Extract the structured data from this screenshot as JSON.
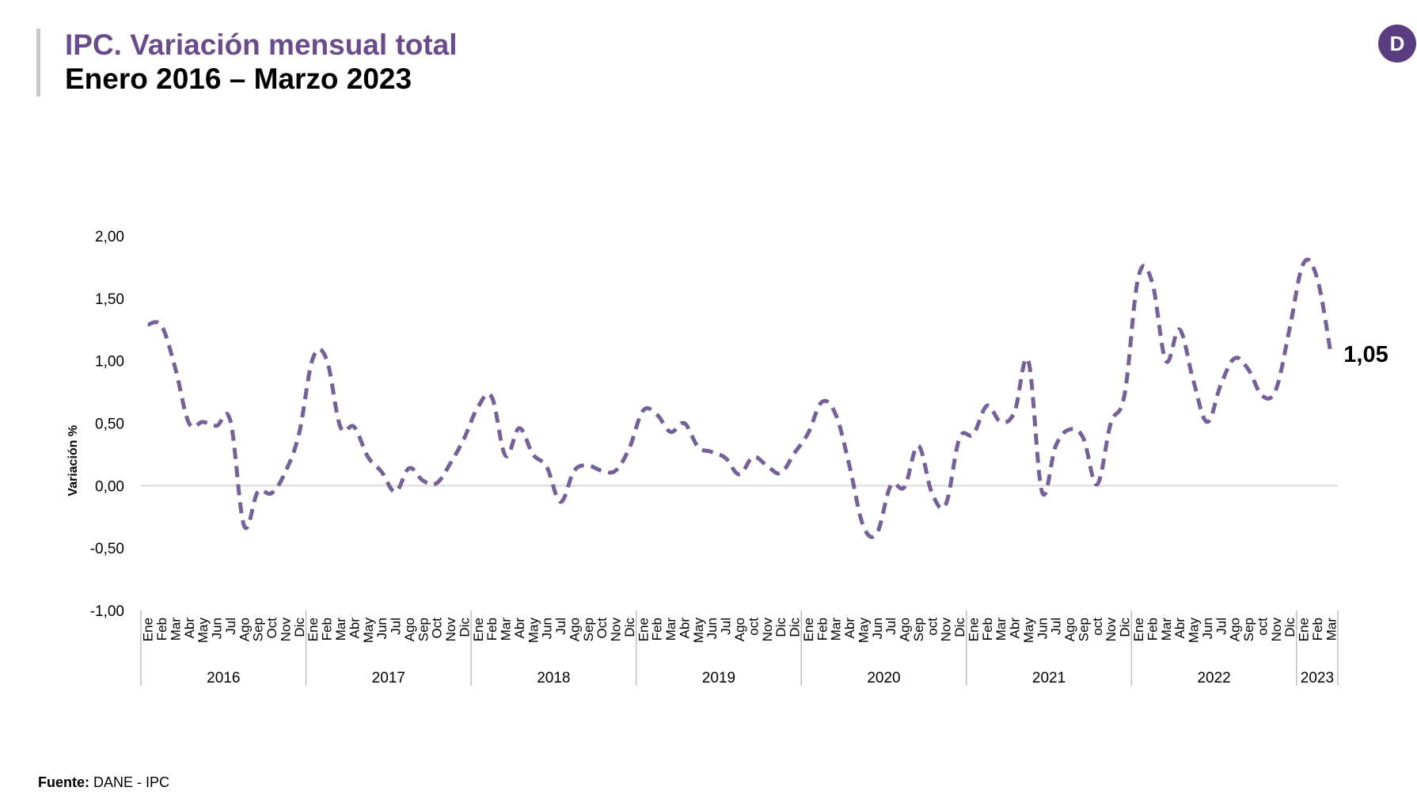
{
  "header": {
    "title": "IPC. Variación mensual total",
    "subtitle": "Enero 2016 – Marzo 2023",
    "logo_letter": "D"
  },
  "footer": {
    "source_label": "Fuente:",
    "source_text": " DANE - IPC"
  },
  "colors": {
    "accent": "#6a4c8c",
    "line": "#75609a",
    "logo": "#5a3d80",
    "zero_line": "#d9d9d9"
  },
  "chart_data": {
    "type": "line",
    "title": "",
    "ylabel": "Variación %",
    "xlabel": "",
    "ylim": [
      -1.0,
      2.0
    ],
    "ytick_labels": [
      "2,00",
      "1,50",
      "1,00",
      "0,50",
      "0,00",
      "-0,50",
      "-1,00"
    ],
    "ytick_values": [
      2.0,
      1.5,
      1.0,
      0.5,
      0.0,
      -0.5,
      -1.0
    ],
    "line_style": "dashed",
    "last_value_label": "1,05",
    "years": [
      {
        "label": "2016",
        "months": [
          "Ene",
          "Feb",
          "Mar",
          "Abr",
          "May",
          "Jun",
          "Jul",
          "Ago",
          "Sep",
          "Oct",
          "Nov",
          "Dic"
        ]
      },
      {
        "label": "2017",
        "months": [
          "Ene",
          "Feb",
          "Mar",
          "Abr",
          "May",
          "Jun",
          "Jul",
          "Ago",
          "Sep",
          "Oct",
          "Nov",
          "Dic"
        ]
      },
      {
        "label": "2018",
        "months": [
          "Ene",
          "Feb",
          "Mar",
          "Abr",
          "May",
          "Jun",
          "Jul",
          "Ago",
          "Sep",
          "Oct",
          "Nov",
          "Dic"
        ]
      },
      {
        "label": "2019",
        "months": [
          "Ene",
          "Feb",
          "Mar",
          "Abr",
          "May",
          "Jun",
          "Jul",
          "Ago",
          "oct",
          "Nov",
          "Dic",
          "Dic"
        ]
      },
      {
        "label": "2020",
        "months": [
          "Ene",
          "Feb",
          "Mar",
          "Abr",
          "May",
          "Jun",
          "Jul",
          "Ago",
          "Sep",
          "oct",
          "Nov",
          "Dic"
        ]
      },
      {
        "label": "2021",
        "months": [
          "Ene",
          "Feb",
          "Mar",
          "Abr",
          "May",
          "Jun",
          "Jul",
          "Ago",
          "Sep",
          "oct",
          "Nov",
          "Dic"
        ]
      },
      {
        "label": "2022",
        "months": [
          "Ene",
          "Feb",
          "Mar",
          "Abr",
          "May",
          "Jun",
          "Jul",
          "Ago",
          "Sep",
          "oct",
          "Nov",
          "Dic"
        ]
      },
      {
        "label": "2023",
        "months": [
          "Ene",
          "Feb",
          "Mar"
        ]
      }
    ],
    "series": [
      {
        "values": [
          1.29,
          1.28,
          0.94,
          0.5,
          0.51,
          0.48,
          0.52,
          -0.32,
          -0.05,
          -0.06,
          0.11,
          0.42,
          1.02,
          1.01,
          0.47,
          0.47,
          0.23,
          0.11,
          -0.05,
          0.14,
          0.04,
          0.02,
          0.18,
          0.38,
          0.63,
          0.71,
          0.24,
          0.46,
          0.25,
          0.15,
          -0.13,
          0.12,
          0.16,
          0.12,
          0.12,
          0.3,
          0.6,
          0.57,
          0.43,
          0.5,
          0.31,
          0.27,
          0.22,
          0.09,
          0.23,
          0.16,
          0.1,
          0.26,
          0.42,
          0.67,
          0.57,
          0.16,
          -0.32,
          -0.38,
          0.0,
          -0.01,
          0.32,
          -0.06,
          -0.15,
          0.38,
          0.41,
          0.64,
          0.51,
          0.59,
          1.0,
          -0.05,
          0.32,
          0.45,
          0.38,
          0.01,
          0.5,
          0.73,
          1.67,
          1.63,
          1.0,
          1.25,
          0.84,
          0.51,
          0.81,
          1.02,
          0.93,
          0.72,
          0.77,
          1.26,
          1.78,
          1.66,
          1.05
        ]
      }
    ]
  }
}
